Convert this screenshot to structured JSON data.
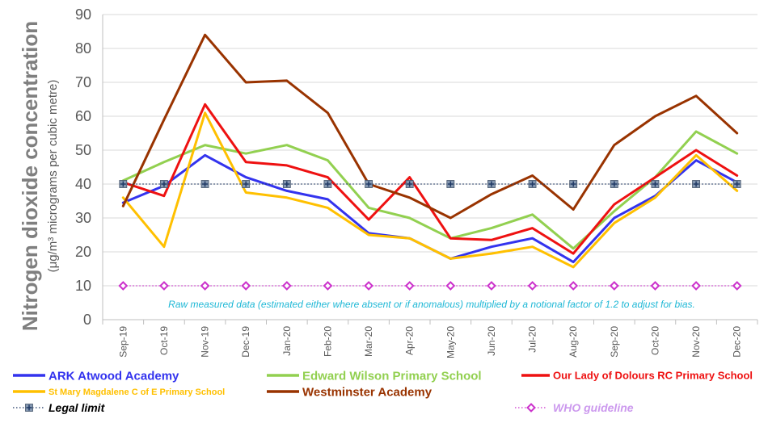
{
  "chart_data": {
    "type": "line",
    "ylabel": "Nitrogen dioxide concentration",
    "ylabel_sub": "(μg/m³ micrograms per cubic metre)",
    "ylim": [
      0,
      90
    ],
    "yticks": [
      0,
      10,
      20,
      30,
      40,
      50,
      60,
      70,
      80,
      90
    ],
    "grid": true,
    "legend_position": "bottom",
    "annotation": "Raw measured data (estimated either where absent or if anomalous) multiplied by a notional factor of 1.2 to adjust for bias.",
    "categories": [
      "Sep-19",
      "Oct-19",
      "Nov-19",
      "Dec-19",
      "Jan-20",
      "Feb-20",
      "Mar-20",
      "Apr-20",
      "May-20",
      "Jun-20",
      "Jul-20",
      "Aug-20",
      "Sep-20",
      "Oct-20",
      "Nov-20",
      "Dec-20"
    ],
    "series": [
      {
        "name": "ARK Atwood Academy",
        "color": "#3333ee",
        "style": "solid",
        "values": [
          34.5,
          39.5,
          48.5,
          42,
          38,
          35.5,
          25.5,
          24,
          18,
          21.5,
          24,
          17,
          30,
          36.5,
          47,
          40.5
        ]
      },
      {
        "name": "Edward Wilson Primary School",
        "color": "#92d050",
        "style": "solid",
        "values": [
          41,
          46.5,
          51.5,
          49,
          51.5,
          47,
          33,
          30,
          24,
          27,
          31,
          21,
          32,
          42,
          55.5,
          49
        ]
      },
      {
        "name": "Our Lady of Dolours RC Primary School",
        "color": "#ee1111",
        "style": "solid",
        "values": [
          40.5,
          36.5,
          63.5,
          46.5,
          45.5,
          42,
          29.5,
          42,
          24,
          23.5,
          27,
          19.5,
          34,
          42,
          50,
          42.5
        ]
      },
      {
        "name": "St Mary Magdalene C of E Primary School",
        "color": "#ffc000",
        "style": "solid",
        "values": [
          36,
          21.5,
          61,
          37.5,
          36,
          33,
          25,
          24,
          18,
          19.5,
          21.5,
          15.5,
          28.5,
          36,
          48.5,
          38
        ]
      },
      {
        "name": "Westminster Academy",
        "color": "#993300",
        "style": "solid",
        "values": [
          33.5,
          59,
          84,
          70,
          70.5,
          61,
          40,
          36,
          30,
          37,
          42.5,
          32.5,
          51.5,
          60,
          66,
          55
        ]
      },
      {
        "name": "Legal limit",
        "color": "#1f3864",
        "style": "dotted",
        "marker": "square-plus",
        "values": [
          40,
          40,
          40,
          40,
          40,
          40,
          40,
          40,
          40,
          40,
          40,
          40,
          40,
          40,
          40,
          40
        ]
      },
      {
        "name": "WHO guideline",
        "color": "#cc33cc",
        "style": "dotted",
        "marker": "diamond",
        "values": [
          10,
          10,
          10,
          10,
          10,
          10,
          10,
          10,
          10,
          10,
          10,
          10,
          10,
          10,
          10,
          10
        ]
      }
    ]
  },
  "legend": [
    {
      "label": "ARK Atwood Academy",
      "color": "#3333ee",
      "text_color": "#3333ee"
    },
    {
      "label": "Edward Wilson Primary School",
      "color": "#92d050",
      "text_color": "#92d050"
    },
    {
      "label": "Our Lady of Dolours RC Primary School",
      "color": "#ee1111",
      "text_color": "#ee1111"
    },
    {
      "label": "St Mary Magdalene C of E Primary School",
      "color": "#ffc000",
      "text_color": "#ffc000"
    },
    {
      "label": "Westminster Academy",
      "color": "#993300",
      "text_color": "#993300"
    },
    {
      "label": "Legal limit",
      "color": "#1f3864",
      "text_color": "#000000"
    },
    {
      "label": "WHO guideline",
      "color": "#cc33cc",
      "text_color": "#cc99ee"
    }
  ]
}
